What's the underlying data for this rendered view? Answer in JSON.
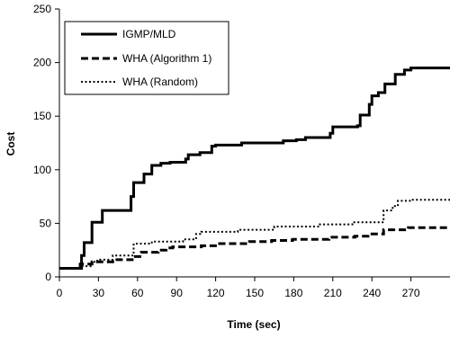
{
  "chart_data": {
    "type": "line",
    "title": "",
    "xlabel": "Time (sec)",
    "ylabel": "Cost",
    "xlim": [
      0,
      300
    ],
    "ylim": [
      0,
      250
    ],
    "x_ticks": [
      "0",
      "30",
      "60",
      "90",
      "120",
      "150",
      "180",
      "210",
      "240",
      "270"
    ],
    "y_ticks": [
      "0",
      "50",
      "100",
      "150",
      "200",
      "250"
    ],
    "grid": false,
    "legend_position": "top-left",
    "series": [
      {
        "name": "IGMP/MLD",
        "style": "solid",
        "color": "#000000",
        "points": [
          [
            0,
            8
          ],
          [
            17,
            8
          ],
          [
            17,
            20
          ],
          [
            19,
            20
          ],
          [
            19,
            32
          ],
          [
            25,
            32
          ],
          [
            25,
            51
          ],
          [
            33,
            51
          ],
          [
            33,
            62
          ],
          [
            55,
            62
          ],
          [
            55,
            75
          ],
          [
            57,
            75
          ],
          [
            57,
            88
          ],
          [
            65,
            88
          ],
          [
            65,
            96
          ],
          [
            71,
            96
          ],
          [
            71,
            104
          ],
          [
            78,
            104
          ],
          [
            78,
            106
          ],
          [
            85,
            106
          ],
          [
            85,
            107
          ],
          [
            97,
            107
          ],
          [
            97,
            110
          ],
          [
            99,
            110
          ],
          [
            99,
            114
          ],
          [
            108,
            114
          ],
          [
            108,
            116
          ],
          [
            117,
            116
          ],
          [
            117,
            122
          ],
          [
            120,
            122
          ],
          [
            120,
            123
          ],
          [
            140,
            123
          ],
          [
            140,
            125
          ],
          [
            155,
            125
          ],
          [
            155,
            125
          ],
          [
            172,
            125
          ],
          [
            172,
            127
          ],
          [
            182,
            127
          ],
          [
            182,
            128
          ],
          [
            189,
            128
          ],
          [
            189,
            130
          ],
          [
            208,
            130
          ],
          [
            208,
            134
          ],
          [
            210,
            134
          ],
          [
            210,
            140
          ],
          [
            229,
            140
          ],
          [
            229,
            141
          ],
          [
            231,
            141
          ],
          [
            231,
            151
          ],
          [
            238,
            151
          ],
          [
            238,
            161
          ],
          [
            240,
            161
          ],
          [
            240,
            169
          ],
          [
            245,
            169
          ],
          [
            245,
            172
          ],
          [
            250,
            172
          ],
          [
            250,
            180
          ],
          [
            258,
            180
          ],
          [
            258,
            189
          ],
          [
            265,
            189
          ],
          [
            265,
            193
          ],
          [
            270,
            193
          ],
          [
            270,
            195
          ],
          [
            300,
            195
          ]
        ]
      },
      {
        "name": "WHA (Algorithm 1)",
        "style": "dashed",
        "color": "#000000",
        "points": [
          [
            0,
            8
          ],
          [
            16,
            8
          ],
          [
            16,
            12
          ],
          [
            25,
            12
          ],
          [
            25,
            14
          ],
          [
            41,
            14
          ],
          [
            41,
            16
          ],
          [
            57,
            16
          ],
          [
            57,
            19
          ],
          [
            63,
            19
          ],
          [
            63,
            23
          ],
          [
            76,
            23
          ],
          [
            76,
            25
          ],
          [
            82,
            25
          ],
          [
            82,
            27
          ],
          [
            87,
            27
          ],
          [
            87,
            28
          ],
          [
            109,
            28
          ],
          [
            109,
            29
          ],
          [
            122,
            29
          ],
          [
            122,
            31
          ],
          [
            146,
            31
          ],
          [
            146,
            33
          ],
          [
            163,
            33
          ],
          [
            163,
            34
          ],
          [
            179,
            34
          ],
          [
            179,
            35
          ],
          [
            207,
            35
          ],
          [
            207,
            37
          ],
          [
            227,
            37
          ],
          [
            227,
            38
          ],
          [
            237,
            38
          ],
          [
            237,
            40
          ],
          [
            249,
            40
          ],
          [
            249,
            44
          ],
          [
            268,
            44
          ],
          [
            268,
            46
          ],
          [
            300,
            46
          ]
        ]
      },
      {
        "name": "WHA (Random)",
        "style": "dotted",
        "color": "#000000",
        "points": [
          [
            0,
            8
          ],
          [
            17,
            8
          ],
          [
            17,
            10
          ],
          [
            25,
            10
          ],
          [
            25,
            14
          ],
          [
            29,
            14
          ],
          [
            29,
            16
          ],
          [
            41,
            16
          ],
          [
            41,
            20
          ],
          [
            57,
            20
          ],
          [
            57,
            31
          ],
          [
            71,
            31
          ],
          [
            71,
            33
          ],
          [
            95,
            33
          ],
          [
            95,
            35
          ],
          [
            105,
            35
          ],
          [
            105,
            40
          ],
          [
            109,
            40
          ],
          [
            109,
            42
          ],
          [
            137,
            42
          ],
          [
            137,
            44
          ],
          [
            165,
            44
          ],
          [
            165,
            47
          ],
          [
            200,
            47
          ],
          [
            200,
            49
          ],
          [
            225,
            49
          ],
          [
            225,
            51
          ],
          [
            249,
            51
          ],
          [
            249,
            62
          ],
          [
            256,
            62
          ],
          [
            256,
            66
          ],
          [
            260,
            66
          ],
          [
            260,
            71
          ],
          [
            270,
            71
          ],
          [
            270,
            72
          ],
          [
            300,
            72
          ]
        ]
      }
    ]
  }
}
